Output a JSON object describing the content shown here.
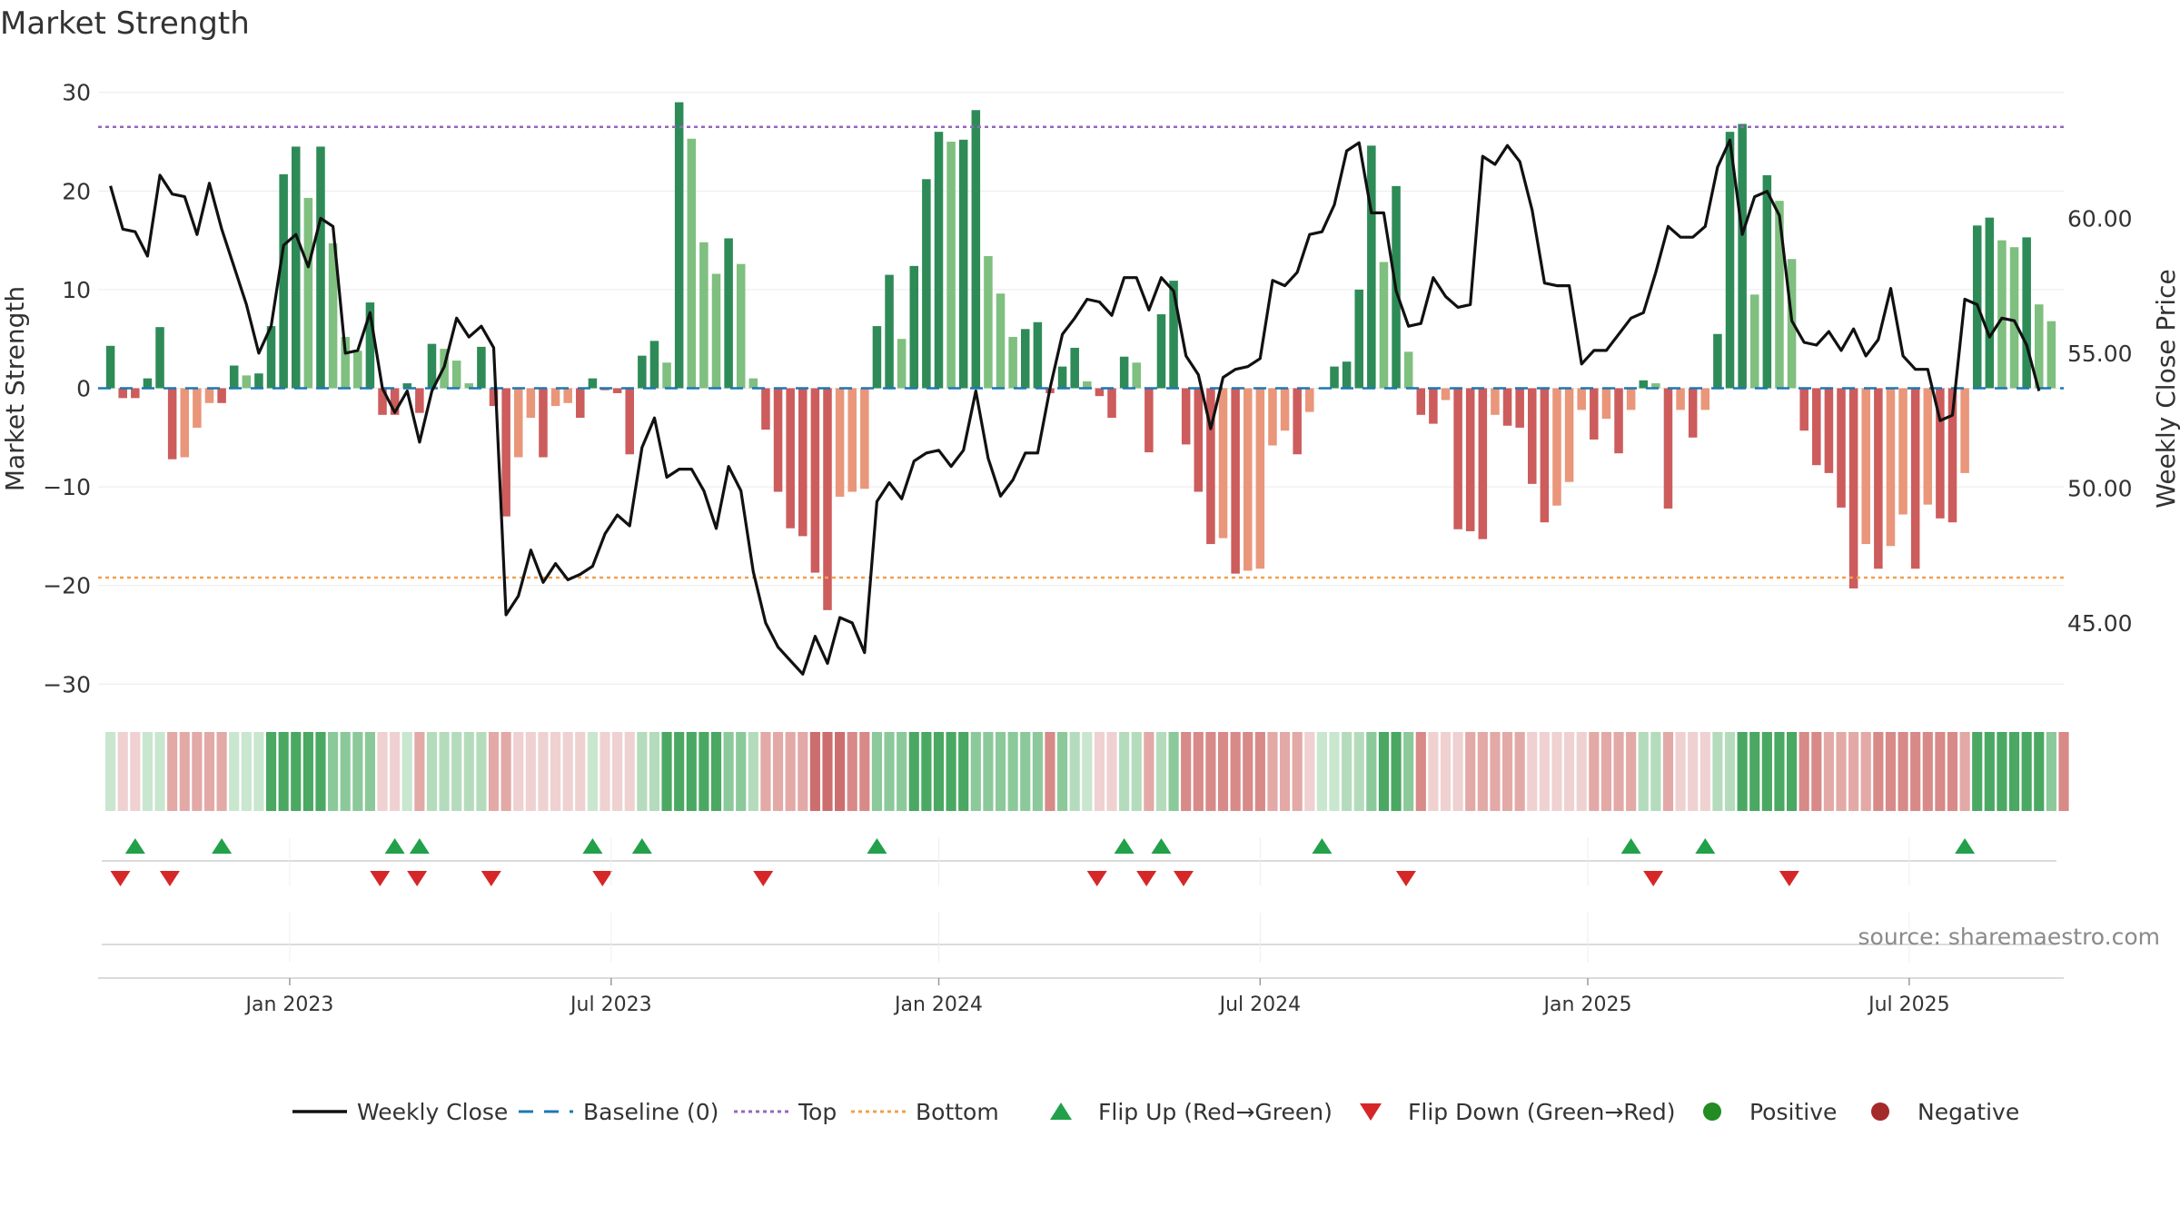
{
  "title": "Market Strength",
  "source": "source: sharemaestro.com",
  "colors": {
    "close": "#111111",
    "baseline": "#1f77b4",
    "top": "#9467bd",
    "bottom": "#f0a050",
    "strong_green": "#2e8b57",
    "light_green": "#7fbf7f",
    "strong_red": "#cd5c5c",
    "light_red": "#e9967a",
    "flip_up": "#22a04a",
    "flip_down": "#d62728",
    "positive": "#228b22",
    "negative": "#a52a2a"
  },
  "legend": [
    {
      "label": "Weekly Close",
      "kind": "line",
      "color": "#111111"
    },
    {
      "label": "Baseline (0)",
      "kind": "dash",
      "color": "#1f77b4"
    },
    {
      "label": "Top",
      "kind": "dot",
      "color": "#9467bd"
    },
    {
      "label": "Bottom",
      "kind": "dot",
      "color": "#f0a050"
    },
    {
      "label": "Flip Up (Red→Green)",
      "kind": "tri-up",
      "color": "#22a04a"
    },
    {
      "label": "Flip Down (Green→Red)",
      "kind": "tri-down",
      "color": "#d62728"
    },
    {
      "label": "Positive",
      "kind": "circle",
      "color": "#228b22"
    },
    {
      "label": "Negative",
      "kind": "circle",
      "color": "#a52a2a"
    }
  ],
  "chart_data": {
    "type": "bar",
    "title": "Market Strength",
    "ylabel": "Market Strength",
    "y2label": "Weekly Close Price",
    "ylim": [
      -32,
      32
    ],
    "y2lim": [
      42.0,
      65.4
    ],
    "yticks": [
      30,
      20,
      10,
      0,
      -10,
      -20,
      -30
    ],
    "ytick_labels": [
      "30",
      "20",
      "10",
      "0",
      "−10",
      "−20",
      "−30"
    ],
    "y2ticks": [
      60,
      55,
      50,
      45
    ],
    "y2tick_labels": [
      "60.00",
      "55.00",
      "50.00",
      "45.00"
    ],
    "xlim": [
      -1,
      158
    ],
    "xticks": [
      {
        "label": "Jan 2023",
        "x": 14.5
      },
      {
        "label": "Jul 2023",
        "x": 40.5
      },
      {
        "label": "Jan 2024",
        "x": 67
      },
      {
        "label": "Jul 2024",
        "x": 93
      },
      {
        "label": "Jan 2025",
        "x": 119.5
      },
      {
        "label": "Jul 2025",
        "x": 145.5
      }
    ],
    "top_level": 26.5,
    "bottom_level": -19.2,
    "baseline": 0,
    "strength": [
      4.3,
      -1,
      -1,
      1,
      6.2,
      -7.2,
      -7,
      -4,
      -1.5,
      -1.5,
      2.3,
      1.3,
      1.5,
      6.3,
      21.7,
      24.5,
      19.3,
      24.5,
      14.7,
      5.2,
      3.8,
      8.7,
      -2.7,
      -2.7,
      0.5,
      -2.5,
      4.5,
      4,
      2.8,
      0.5,
      4.2,
      -1.8,
      -13,
      -7,
      -3,
      -7,
      -1.8,
      -1.5,
      -3,
      1,
      -0.2,
      -0.5,
      -6.7,
      3.3,
      4.8,
      2.6,
      29,
      25.3,
      14.8,
      11.6,
      15.2,
      12.6,
      1,
      -4.2,
      -10.5,
      -14.2,
      -15,
      -18.7,
      -22.5,
      -11,
      -10.5,
      -10.2,
      6.3,
      11.5,
      5,
      12.4,
      21.2,
      26,
      25,
      25.2,
      28.2,
      13.4,
      9.6,
      5.2,
      6,
      6.7,
      -0.5,
      2.2,
      4.1,
      0.7,
      -0.8,
      -3,
      3.2,
      2.6,
      -6.5,
      7.5,
      10.9,
      -5.7,
      -10.5,
      -15.8,
      -15.2,
      -18.8,
      -18.5,
      -18.3,
      -5.8,
      -4.3,
      -6.7,
      -2.4,
      0,
      2.2,
      2.7,
      10,
      24.6,
      12.8,
      20.5,
      3.7,
      -2.7,
      -3.6,
      -1.2,
      -14.3,
      -14.5,
      -15.3,
      -2.7,
      -3.8,
      -4,
      -9.7,
      -13.6,
      -11.9,
      -9.5,
      -2.2,
      -5.2,
      -3.1,
      -6.6,
      -2.2,
      0.8,
      0.5,
      -12.2,
      -2.2,
      -5,
      -2.2,
      5.5,
      26,
      26.8,
      9.5,
      21.6,
      19,
      13.1,
      -4.3,
      -7.8,
      -8.6,
      -12.1,
      -20.3,
      -15.8,
      -18.3,
      -16,
      -12.8,
      -18.3,
      -11.8,
      -13.2,
      -13.6,
      -8.6,
      16.5,
      17.3,
      15,
      14.3,
      15.3,
      8.5,
      6.8
    ],
    "close": [
      61.2,
      59.6,
      59.5,
      58.6,
      61.6,
      60.9,
      60.8,
      59.4,
      61.3,
      59.6,
      58.2,
      56.8,
      55.0,
      56.0,
      59.0,
      59.4,
      58.2,
      60.0,
      59.7,
      55.0,
      55.1,
      56.5,
      53.7,
      52.8,
      53.6,
      51.7,
      53.6,
      54.5,
      56.3,
      55.6,
      56.0,
      55.2,
      45.3,
      46.0,
      47.7,
      46.5,
      47.2,
      46.6,
      46.8,
      47.1,
      48.3,
      49.0,
      48.6,
      51.5,
      52.6,
      50.4,
      50.7,
      50.7,
      49.9,
      48.5,
      50.8,
      49.9,
      46.9,
      45.0,
      44.1,
      43.6,
      43.1,
      44.5,
      43.5,
      45.2,
      45.0,
      43.9,
      49.5,
      50.2,
      49.6,
      51.0,
      51.3,
      51.4,
      50.8,
      51.4,
      53.6,
      51.1,
      49.7,
      50.3,
      51.3,
      51.3,
      53.7,
      55.7,
      56.3,
      57.0,
      56.9,
      56.4,
      57.8,
      57.8,
      56.6,
      57.8,
      57.3,
      54.9,
      54.2,
      52.2,
      54.1,
      54.4,
      54.5,
      54.8,
      57.7,
      57.5,
      58.0,
      59.4,
      59.5,
      60.5,
      62.5,
      62.8,
      60.2,
      60.2,
      57.3,
      56.0,
      56.1,
      57.8,
      57.1,
      56.7,
      56.8,
      62.3,
      62.0,
      62.7,
      62.1,
      60.3,
      57.6,
      57.5,
      57.5,
      54.6,
      55.1,
      55.1,
      55.7,
      56.3,
      56.5,
      58.0,
      59.7,
      59.3,
      59.3,
      59.7,
      61.9,
      62.9,
      59.4,
      60.8,
      61.0,
      60.1,
      56.2,
      55.4,
      55.3,
      55.8,
      55.1,
      55.9,
      54.9,
      55.5,
      57.4,
      54.9,
      54.4,
      54.4,
      52.5,
      52.7,
      57.0,
      56.8,
      55.6,
      56.3,
      56.2,
      55.3,
      53.6
    ],
    "flip_up": [
      2,
      9,
      23,
      25,
      39,
      43,
      62,
      82,
      85,
      98,
      123,
      129,
      150
    ],
    "flip_down": [
      0.8,
      4.8,
      21.8,
      24.8,
      30.8,
      39.8,
      52.8,
      79.8,
      83.8,
      86.8,
      104.8,
      124.8,
      135.8
    ],
    "strip_intensity": [
      1,
      1,
      1,
      1,
      1,
      2,
      2,
      2,
      2,
      2,
      1,
      1,
      1,
      4,
      4,
      4,
      4,
      4,
      3,
      3,
      3,
      3,
      1,
      1,
      1,
      2,
      2,
      2,
      2,
      2,
      2,
      2,
      2,
      1,
      1,
      1,
      1,
      1,
      1,
      1,
      1,
      1,
      1,
      2,
      2,
      4,
      4,
      4,
      4,
      4,
      3,
      3,
      2,
      2,
      2,
      2,
      2,
      4,
      4,
      4,
      3,
      3,
      3,
      3,
      3,
      4,
      4,
      4,
      4,
      4,
      3,
      3,
      3,
      3,
      3,
      3,
      3,
      3,
      2,
      1,
      1,
      1,
      2,
      2,
      2,
      2,
      3,
      3,
      3,
      3,
      3,
      3,
      3,
      3,
      2,
      2,
      2,
      1,
      1,
      1,
      2,
      2,
      3,
      4,
      4,
      3,
      3,
      1,
      1,
      1,
      2,
      2,
      2,
      2,
      2,
      1,
      1,
      1,
      1,
      1,
      2,
      2,
      2,
      2,
      2,
      2,
      2,
      1,
      1,
      1,
      2,
      2,
      4,
      4,
      4,
      4,
      4,
      3,
      3,
      2,
      2,
      2,
      2,
      3,
      3,
      3,
      3,
      3,
      3,
      3,
      2,
      4,
      4,
      4,
      4,
      4,
      4,
      3,
      3
    ]
  }
}
